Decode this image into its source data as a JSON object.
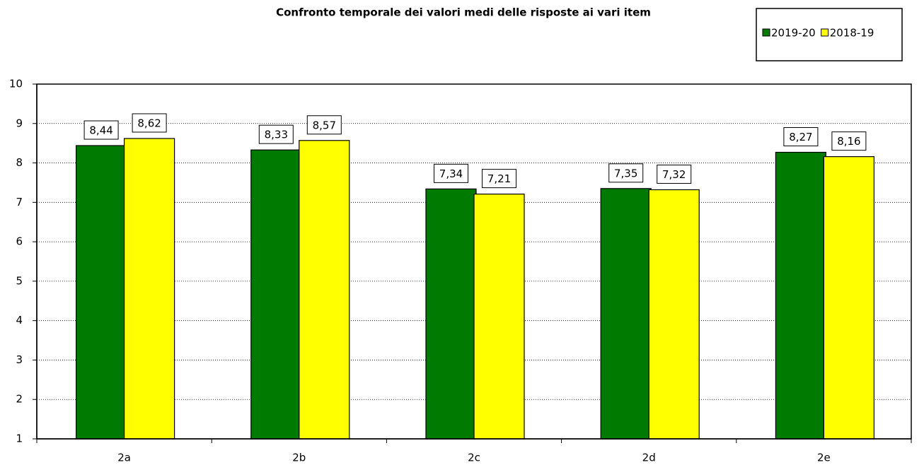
{
  "chart_data": {
    "type": "bar",
    "title": "Confronto temporale dei valori medi delle risposte ai vari item",
    "categories": [
      "2a",
      "2b",
      "2c",
      "2d",
      "2e"
    ],
    "series": [
      {
        "name": "2019-20",
        "color": "#007a00",
        "values": [
          8.44,
          8.33,
          7.34,
          7.35,
          8.27
        ],
        "value_labels": [
          "8,44",
          "8,33",
          "7,34",
          "7,35",
          "8,27"
        ]
      },
      {
        "name": "2018-19",
        "color": "#ffff00",
        "values": [
          8.62,
          8.57,
          7.21,
          7.32,
          8.16
        ],
        "value_labels": [
          "8,62",
          "8,57",
          "7,21",
          "7,32",
          "8,16"
        ]
      }
    ],
    "ylim": [
      1,
      10
    ],
    "yticks": [
      1,
      2,
      3,
      4,
      5,
      6,
      7,
      8,
      9,
      10
    ],
    "grid": true,
    "legend": "top-right"
  }
}
